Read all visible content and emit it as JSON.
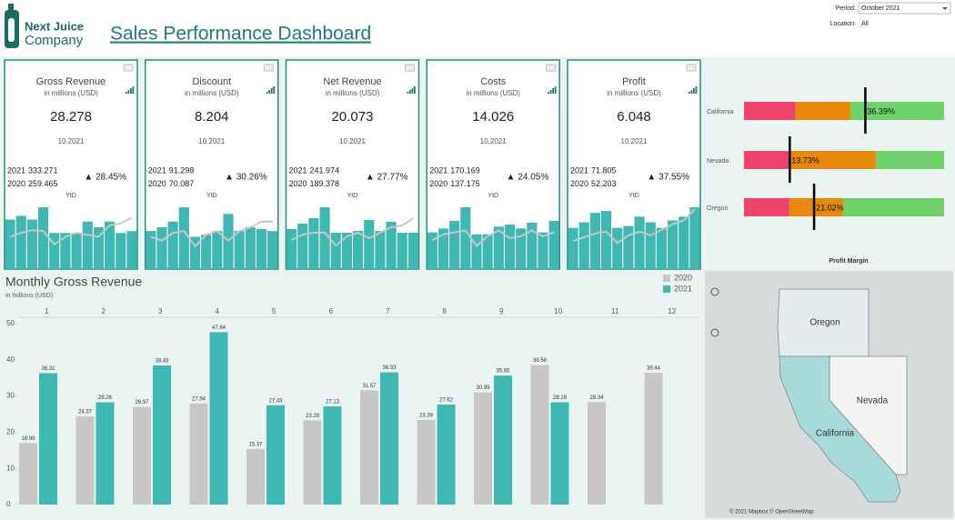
{
  "header": {
    "logo_top": "Next Juice",
    "logo_bottom": "Company",
    "title": "Sales Performance Dashboard",
    "period_label": "Period:",
    "period_value": "October 2021",
    "location_label": "Location:",
    "location_value": "All"
  },
  "kpis": [
    {
      "title": "Gross Revenue",
      "subtitle": "in millions (USD)",
      "value": "28.278",
      "date": "10.2021",
      "rows": [
        {
          "year": "2021",
          "value": "333.271"
        },
        {
          "year": "2020",
          "value": "259.465"
        }
      ],
      "change": "▲ 28.45%",
      "ytd": "YtD",
      "spark_bars": [
        52,
        56,
        52,
        65,
        38,
        38,
        38,
        50,
        44,
        50,
        38,
        40
      ],
      "spark_line": [
        34,
        38,
        41,
        40,
        26,
        34,
        38,
        36,
        34,
        46,
        48,
        54
      ]
    },
    {
      "title": "Discount",
      "subtitle": "in millions (USD)",
      "value": "8.204",
      "date": "10.2021",
      "rows": [
        {
          "year": "2021",
          "value": "91.298"
        },
        {
          "year": "2020",
          "value": "70.087"
        }
      ],
      "change": "▲ 30.26%",
      "ytd": "YtD",
      "spark_bars": [
        40,
        44,
        50,
        65,
        34,
        36,
        40,
        58,
        40,
        44,
        42,
        40
      ],
      "spark_line": [
        34,
        30,
        38,
        40,
        24,
        36,
        40,
        30,
        40,
        44,
        50,
        50
      ]
    },
    {
      "title": "Net Revenue",
      "subtitle": "in millions (USD)",
      "value": "20.073",
      "date": "10.2021",
      "rows": [
        {
          "year": "2021",
          "value": "241.974"
        },
        {
          "year": "2020",
          "value": "189.378"
        }
      ],
      "change": "▲ 27.77%",
      "ytd": "YtD",
      "spark_bars": [
        44,
        50,
        56,
        68,
        40,
        40,
        42,
        54,
        42,
        52,
        40,
        40
      ],
      "spark_line": [
        32,
        38,
        40,
        40,
        26,
        36,
        40,
        34,
        40,
        46,
        48,
        56
      ]
    },
    {
      "title": "Costs",
      "subtitle": "in millions (USD)",
      "value": "14.026",
      "date": "10.2021",
      "rows": [
        {
          "year": "2021",
          "value": "170.169"
        },
        {
          "year": "2020",
          "value": "137.175"
        }
      ],
      "change": "▲ 24.05%",
      "ytd": "YtD",
      "spark_bars": [
        38,
        42,
        50,
        64,
        36,
        36,
        44,
        46,
        42,
        48,
        38,
        50
      ],
      "spark_line": [
        30,
        36,
        38,
        40,
        24,
        34,
        40,
        32,
        34,
        40,
        34,
        38
      ]
    },
    {
      "title": "Profit",
      "subtitle": "in millions (USD)",
      "value": "6.048",
      "date": "10.2021",
      "rows": [
        {
          "year": "2021",
          "value": "71.805"
        },
        {
          "year": "2020",
          "value": "52.203"
        }
      ],
      "change": "▲ 37.55%",
      "ytd": "YtD",
      "spark_bars": [
        44,
        50,
        60,
        62,
        44,
        46,
        56,
        50,
        44,
        52,
        56,
        66
      ],
      "spark_line": [
        30,
        34,
        38,
        40,
        28,
        36,
        40,
        36,
        42,
        48,
        52,
        64
      ]
    }
  ],
  "chart_data": [
    {
      "type": "bar",
      "title": "Monthly Gross Revenue",
      "subtitle": "in millions (USD)",
      "categories": [
        "1",
        "2",
        "3",
        "4",
        "5",
        "6",
        "7",
        "8",
        "9",
        "10",
        "11",
        "12"
      ],
      "series": [
        {
          "name": "2020",
          "color": "#c9c7c5",
          "values": [
            16.99,
            24.37,
            26.97,
            27.94,
            15.37,
            23.29,
            31.57,
            23.39,
            30.99,
            38.58,
            28.34,
            36.44
          ]
        },
        {
          "name": "2021",
          "color": "#3fb8b4",
          "values": [
            36.31,
            28.26,
            38.43,
            47.64,
            27.43,
            27.13,
            36.53,
            27.62,
            35.65,
            28.28,
            null,
            null
          ]
        }
      ],
      "ylim": [
        0,
        50
      ],
      "yticks": [
        0,
        10,
        20,
        30,
        40,
        50
      ],
      "legend": "top-right"
    },
    {
      "type": "bullet",
      "title": "Profit Margin",
      "categories": [
        "California",
        "Nevada",
        "Oregon"
      ],
      "xlim": [
        0,
        60
      ],
      "series": [
        {
          "color": "#f0436b",
          "values": [
            15.5,
            13.6,
            13.6
          ]
        },
        {
          "color": "#e8890c",
          "values": [
            16.4,
            25.9,
            16.1
          ]
        },
        {
          "color": "#6fd16a",
          "values": [
            28.1,
            20.5,
            30.3
          ]
        }
      ],
      "markers": {
        "color": "#000000",
        "values": [
          36.39,
          13.73,
          21.02
        ],
        "value_labels": [
          "36.39%",
          "13.73%",
          "21.02%"
        ]
      }
    }
  ],
  "map": {
    "oregon": "Oregon",
    "nevada": "Nevada",
    "california": "California",
    "attribution": "© 2021 Mapbox © OpenStreetMap"
  }
}
